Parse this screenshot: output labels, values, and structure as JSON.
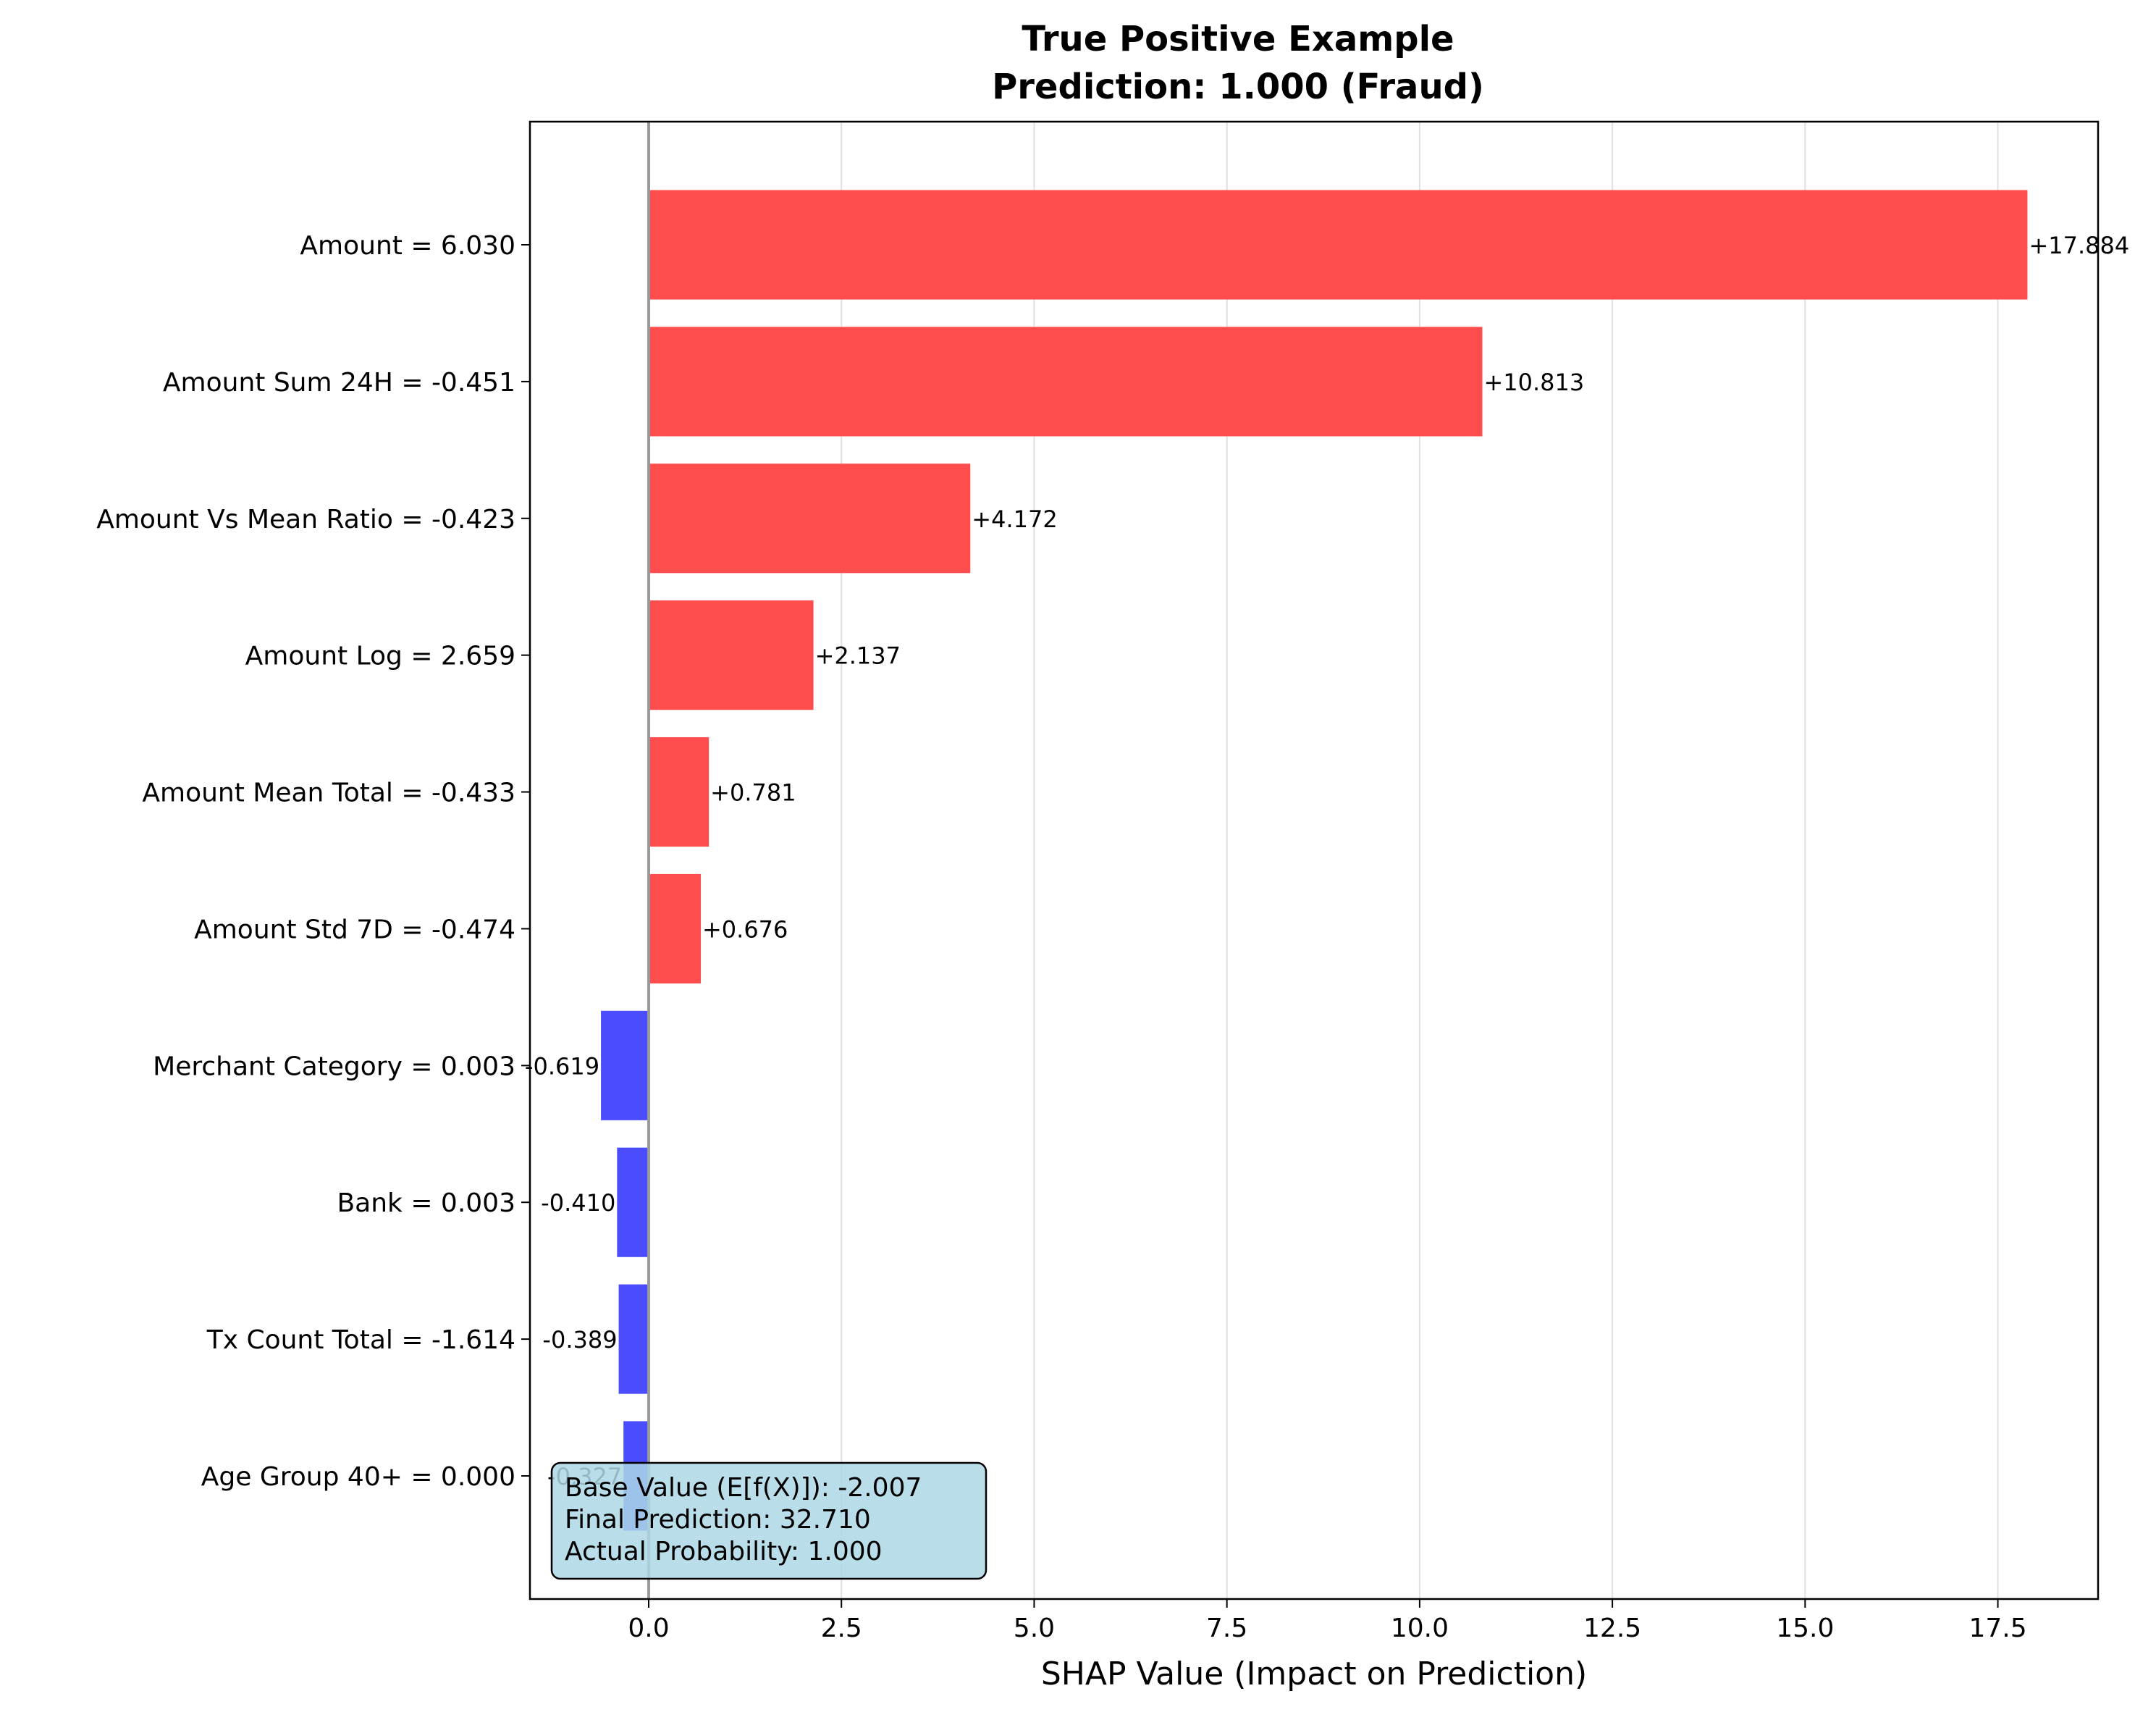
{
  "chart_data": {
    "type": "bar",
    "orientation": "horizontal",
    "title_line1": "True Positive Example",
    "title_line2": "Prediction: 1.000 (Fraud)",
    "xlabel": "SHAP Value (Impact on Prediction)",
    "ylabel": "",
    "xlim": [
      -1.54,
      18.8
    ],
    "xticks": [
      0.0,
      2.5,
      5.0,
      7.5,
      10.0,
      12.5,
      15.0,
      17.5
    ],
    "xtick_labels": [
      "0.0",
      "2.5",
      "5.0",
      "7.5",
      "10.0",
      "12.5",
      "15.0",
      "17.5"
    ],
    "grid": "x-axis vertical lines",
    "positive_color": "#ff4c4c",
    "negative_color": "#4c4cff",
    "zero_line_color": "#999999",
    "categories": [
      "Amount = 6.030",
      "Amount Sum 24H = -0.451",
      "Amount Vs Mean Ratio = -0.423",
      "Amount Log = 2.659",
      "Amount Mean Total = -0.433",
      "Amount Std 7D = -0.474",
      "Merchant Category = 0.003",
      "Bank = 0.003",
      "Tx Count Total = -1.614",
      "Age Group 40+ = 0.000"
    ],
    "values": [
      17.884,
      10.813,
      4.172,
      2.137,
      0.781,
      0.676,
      -0.619,
      -0.41,
      -0.389,
      -0.327
    ],
    "value_labels": [
      "+17.884",
      "+10.813",
      "+4.172",
      "+2.137",
      "+0.781",
      "+0.676",
      "-0.619",
      "-0.410",
      "-0.389",
      "-0.327"
    ],
    "info_box": {
      "lines": [
        "Base Value (E[f(X)]): -2.007",
        "Final Prediction: 32.710",
        "Actual Probability: 1.000"
      ],
      "background": "#add8e6",
      "position": "bottom-left"
    }
  }
}
